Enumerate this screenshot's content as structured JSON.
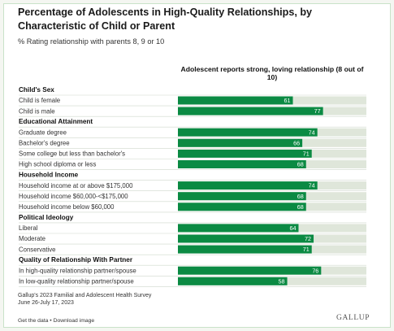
{
  "title": "Percentage of Adolescents in High-Quality Relationships, by Characteristic of Child or Parent",
  "subtitle": "% Rating relationship with parents 8, 9 or 10",
  "column_header": "Adolescent reports strong, loving relationship (8 out of 10)",
  "source_lines": [
    "Gallup's 2023 Familial and Adolescent Health Survey",
    "June 26-July 17, 2023"
  ],
  "footer_links": "Get the data • Download image",
  "brand": "GALLUP",
  "colors": {
    "bar": "#0b8a43",
    "track": "#dfe6da",
    "divider": "#cfd8cc",
    "value_text": "#ffffff"
  },
  "chart_data": {
    "type": "bar",
    "orientation": "horizontal",
    "xlim": [
      0,
      100
    ],
    "groups": [
      {
        "name": "Child's Sex",
        "rows": [
          {
            "label": "Child is female",
            "value": 61
          },
          {
            "label": "Child is male",
            "value": 77
          }
        ]
      },
      {
        "name": "Educational Attainment",
        "rows": [
          {
            "label": "Graduate degree",
            "value": 74
          },
          {
            "label": "Bachelor's degree",
            "value": 66
          },
          {
            "label": "Some college but less than bachelor's",
            "value": 71
          },
          {
            "label": "High school diploma or less",
            "value": 68
          }
        ]
      },
      {
        "name": "Household Income",
        "rows": [
          {
            "label": "Household income at or above $175,000",
            "value": 74
          },
          {
            "label": "Household income $60,000-<$175,000",
            "value": 68
          },
          {
            "label": "Household income below $60,000",
            "value": 68
          }
        ]
      },
      {
        "name": "Political Ideology",
        "rows": [
          {
            "label": "Liberal",
            "value": 64
          },
          {
            "label": "Moderate",
            "value": 72
          },
          {
            "label": "Conservative",
            "value": 71
          }
        ]
      },
      {
        "name": "Quality of Relationship With Partner",
        "rows": [
          {
            "label": "In high-quality relationship partner/spouse",
            "value": 76
          },
          {
            "label": "In low-quality relationship partner/spouse",
            "value": 58
          }
        ]
      }
    ]
  }
}
